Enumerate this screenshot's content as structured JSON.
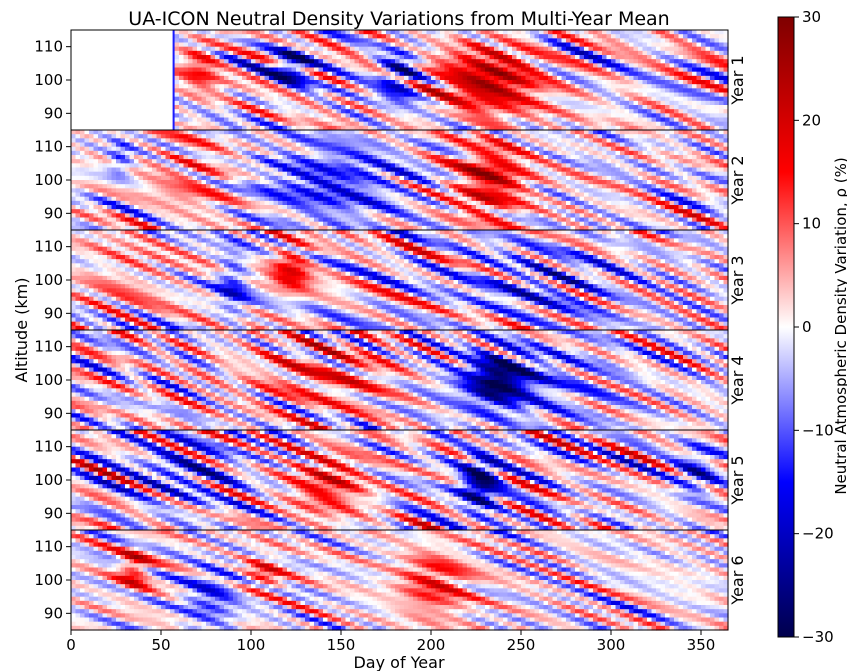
{
  "chart_data": {
    "type": "heatmap",
    "title": "UA-ICON Neutral Density Variations from Multi-Year Mean",
    "xlabel": "Day of Year",
    "ylabel": "Altitude (km)",
    "xlim": [
      0,
      365
    ],
    "ylim": [
      85,
      115
    ],
    "x_ticks": [
      0,
      50,
      100,
      150,
      200,
      250,
      300,
      350
    ],
    "y_ticks": [
      90,
      100,
      110
    ],
    "panels": [
      {
        "label": "Year 1",
        "data_start_day": 57
      },
      {
        "label": "Year 2",
        "data_start_day": 0
      },
      {
        "label": "Year 3",
        "data_start_day": 0
      },
      {
        "label": "Year 4",
        "data_start_day": 0
      },
      {
        "label": "Year 5",
        "data_start_day": 0
      },
      {
        "label": "Year 6",
        "data_start_day": 0
      }
    ],
    "colorbar": {
      "label": "Neutral Atmospheric Density Variation, ρ (%)",
      "range": [
        -30,
        30
      ],
      "ticks": [
        -30,
        -20,
        -10,
        0,
        10,
        20,
        30
      ],
      "colormap": "seismic",
      "colors": [
        "#00004c",
        "#0000ff",
        "#ffffff",
        "#ff0000",
        "#7f0000"
      ]
    },
    "features": [
      {
        "panel": "Year 1",
        "day_range": [
          200,
          265
        ],
        "alt_range": [
          88,
          112
        ],
        "value": 22
      },
      {
        "panel": "Year 1",
        "day_range": [
          110,
          135
        ],
        "alt_range": [
          98,
          110
        ],
        "value": -20
      },
      {
        "panel": "Year 1",
        "day_range": [
          170,
          195
        ],
        "alt_range": [
          93,
          110
        ],
        "value": -18
      },
      {
        "panel": "Year 1",
        "day_range": [
          60,
          85
        ],
        "alt_range": [
          95,
          115
        ],
        "value": 12
      },
      {
        "panel": "Year 2",
        "day_range": [
          210,
          255
        ],
        "alt_range": [
          88,
          112
        ],
        "value": 20
      },
      {
        "panel": "Year 2",
        "day_range": [
          100,
          190
        ],
        "alt_range": [
          87,
          112
        ],
        "value": -14
      },
      {
        "panel": "Year 2",
        "day_range": [
          40,
          95
        ],
        "alt_range": [
          88,
          112
        ],
        "value": 8
      },
      {
        "panel": "Year 2",
        "day_range": [
          20,
          35
        ],
        "alt_range": [
          100,
          112
        ],
        "value": -10
      },
      {
        "panel": "Year 3",
        "day_range": [
          110,
          135
        ],
        "alt_range": [
          95,
          112
        ],
        "value": 16
      },
      {
        "panel": "Year 3",
        "day_range": [
          80,
          100
        ],
        "alt_range": [
          87,
          110
        ],
        "value": -12
      },
      {
        "panel": "Year 3",
        "day_range": [
          210,
          310
        ],
        "alt_range": [
          88,
          110
        ],
        "value": -9
      },
      {
        "panel": "Year 3",
        "day_range": [
          0,
          60
        ],
        "alt_range": [
          88,
          112
        ],
        "value": 6
      },
      {
        "panel": "Year 4",
        "day_range": [
          220,
          255
        ],
        "alt_range": [
          92,
          108
        ],
        "value": -22
      },
      {
        "panel": "Year 4",
        "day_range": [
          195,
          300
        ],
        "alt_range": [
          87,
          112
        ],
        "value": -10
      },
      {
        "panel": "Year 4",
        "day_range": [
          95,
          190
        ],
        "alt_range": [
          90,
          112
        ],
        "value": 10
      },
      {
        "panel": "Year 5",
        "day_range": [
          215,
          240
        ],
        "alt_range": [
          90,
          108
        ],
        "value": -26
      },
      {
        "panel": "Year 5",
        "day_range": [
          120,
          165
        ],
        "alt_range": [
          88,
          110
        ],
        "value": 15
      },
      {
        "panel": "Year 5",
        "day_range": [
          30,
          95
        ],
        "alt_range": [
          92,
          112
        ],
        "value": -10
      },
      {
        "panel": "Year 5",
        "day_range": [
          335,
          360
        ],
        "alt_range": [
          95,
          110
        ],
        "value": -14
      },
      {
        "panel": "Year 6",
        "day_range": [
          180,
          225
        ],
        "alt_range": [
          88,
          110
        ],
        "value": 14
      },
      {
        "panel": "Year 6",
        "day_range": [
          25,
          45
        ],
        "alt_range": [
          96,
          110
        ],
        "value": 16
      },
      {
        "panel": "Year 6",
        "day_range": [
          60,
          95
        ],
        "alt_range": [
          85,
          105
        ],
        "value": -12
      },
      {
        "panel": "Year 6",
        "day_range": [
          95,
          120
        ],
        "alt_range": [
          96,
          108
        ],
        "value": 12
      }
    ]
  }
}
